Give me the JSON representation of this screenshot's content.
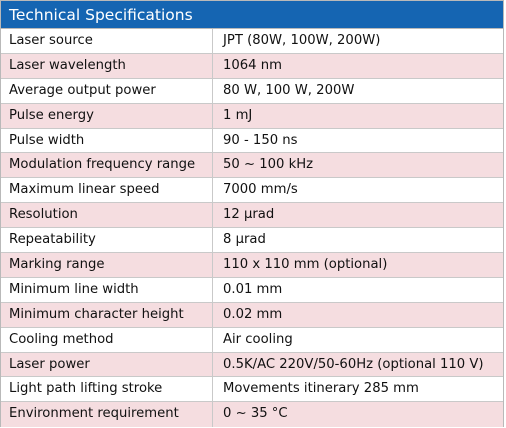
{
  "table": {
    "title": "Technical Specifications",
    "rows": [
      {
        "label": "Laser source",
        "value": "JPT (80W, 100W, 200W)"
      },
      {
        "label": "Laser wavelength",
        "value": "1064 nm"
      },
      {
        "label": "Average output power",
        "value": "80 W, 100 W, 200W"
      },
      {
        "label": "Pulse energy",
        "value": "1 mJ"
      },
      {
        "label": "Pulse width",
        "value": "90 - 150 ns"
      },
      {
        "label": "Modulation frequency range",
        "value": "50 ~ 100 kHz"
      },
      {
        "label": "Maximum linear speed",
        "value": "7000 mm/s"
      },
      {
        "label": "Resolution",
        "value": "12 μrad"
      },
      {
        "label": "Repeatability",
        "value": "8 μrad"
      },
      {
        "label": "Marking range",
        "value": "110 x 110 mm (optional)"
      },
      {
        "label": "Minimum line width",
        "value": "0.01 mm"
      },
      {
        "label": "Minimum character height",
        "value": "0.02 mm"
      },
      {
        "label": "Cooling method",
        "value": "Air cooling"
      },
      {
        "label": "Laser power",
        "value": "0.5K/AC 220V/50-60Hz (optional 110 V)"
      },
      {
        "label": "Light path lifting stroke",
        "value": "Movements itinerary 285 mm"
      },
      {
        "label": "Environment requirement",
        "value": "0 ~ 35 °C"
      }
    ]
  },
  "colors": {
    "header_bg": "#1565b2",
    "stripe_bg": "#f5dde0"
  }
}
